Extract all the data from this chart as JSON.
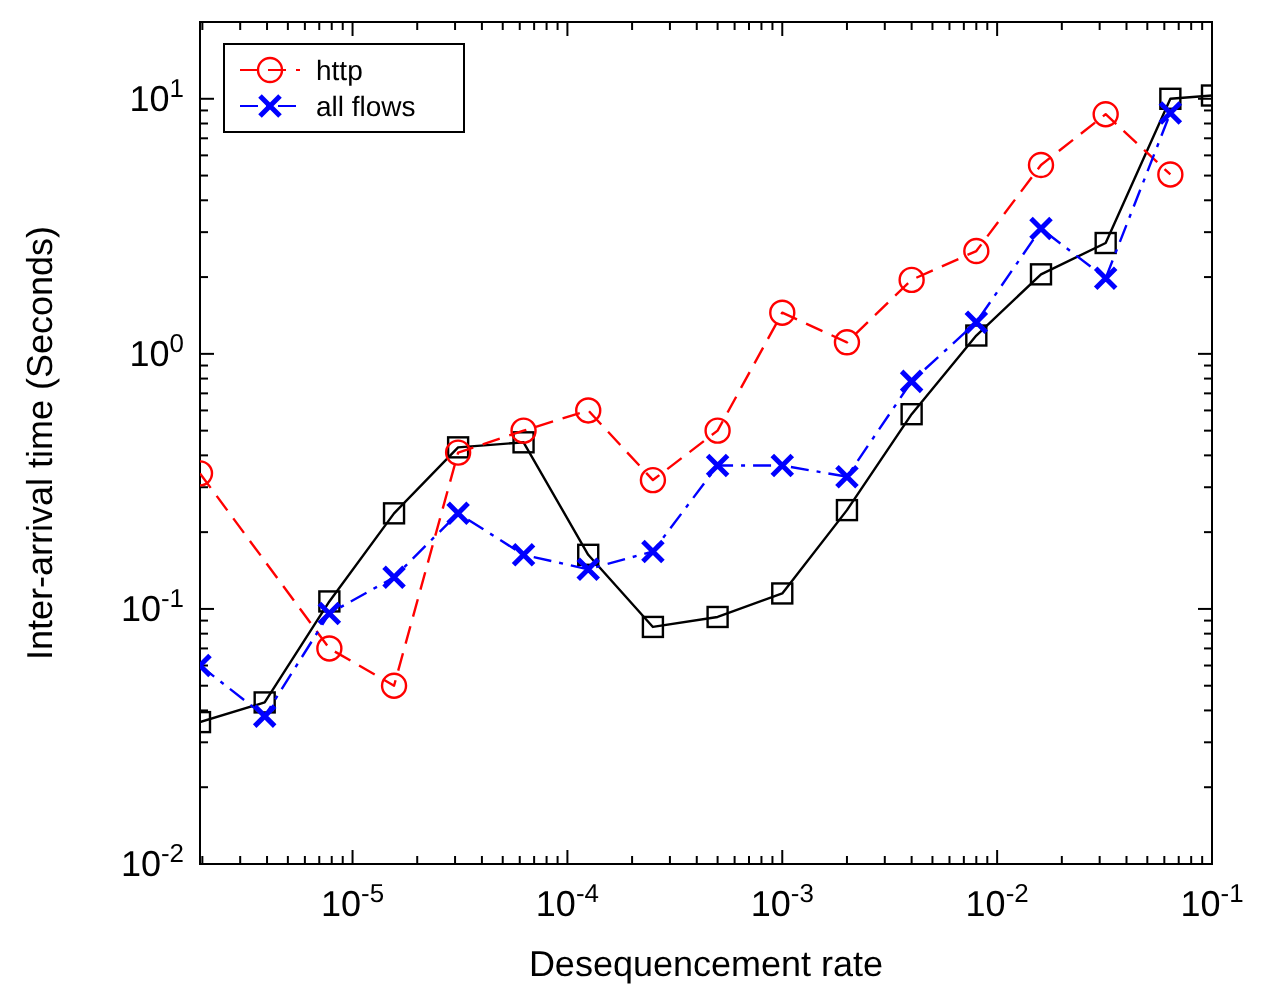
{
  "chart_data": {
    "type": "line",
    "xlabel": "Desequencement rate",
    "ylabel": "Inter-arrival time (Seconds)",
    "log": "xy",
    "grid": false,
    "legend": "top left",
    "xlim": [
      1.95e-06,
      0.1
    ],
    "ylim": [
      0.01,
      20
    ],
    "xticks": [
      {
        "value": 2e-06,
        "label": null
      },
      {
        "value": 3e-06,
        "label": null
      },
      {
        "value": 4e-06,
        "label": null
      },
      {
        "value": 5e-06,
        "label": null
      },
      {
        "value": 6e-06,
        "label": null
      },
      {
        "value": 7e-06,
        "label": null
      },
      {
        "value": 8e-06,
        "label": null
      },
      {
        "value": 9e-06,
        "label": null
      },
      {
        "value": 1e-05,
        "label": "10$^{-5}$"
      },
      {
        "value": 2e-05,
        "label": null
      },
      {
        "value": 3e-05,
        "label": null
      },
      {
        "value": 4e-05,
        "label": null
      },
      {
        "value": 5e-05,
        "label": null
      },
      {
        "value": 6e-05,
        "label": null
      },
      {
        "value": 7e-05,
        "label": null
      },
      {
        "value": 8e-05,
        "label": null
      },
      {
        "value": 9e-05,
        "label": null
      },
      {
        "value": 0.0001,
        "label": "10$^{-4}$"
      },
      {
        "value": 0.0002,
        "label": null
      },
      {
        "value": 0.0003,
        "label": null
      },
      {
        "value": 0.0004,
        "label": null
      },
      {
        "value": 0.0005,
        "label": null
      },
      {
        "value": 0.0006,
        "label": null
      },
      {
        "value": 0.0007,
        "label": null
      },
      {
        "value": 0.0008,
        "label": null
      },
      {
        "value": 0.0009,
        "label": null
      },
      {
        "value": 0.001,
        "label": "10$^{-3}$"
      },
      {
        "value": 0.002,
        "label": null
      },
      {
        "value": 0.003,
        "label": null
      },
      {
        "value": 0.004,
        "label": null
      },
      {
        "value": 0.005,
        "label": null
      },
      {
        "value": 0.006,
        "label": null
      },
      {
        "value": 0.007,
        "label": null
      },
      {
        "value": 0.008,
        "label": null
      },
      {
        "value": 0.009,
        "label": null
      },
      {
        "value": 0.01,
        "label": "10$^{-2}$"
      },
      {
        "value": 0.02,
        "label": null
      },
      {
        "value": 0.03,
        "label": null
      },
      {
        "value": 0.04,
        "label": null
      },
      {
        "value": 0.05,
        "label": null
      },
      {
        "value": 0.06,
        "label": null
      },
      {
        "value": 0.07,
        "label": null
      },
      {
        "value": 0.08,
        "label": null
      },
      {
        "value": 0.09,
        "label": null
      },
      {
        "value": 0.1,
        "label": "10$^{-1}$"
      }
    ],
    "yticks": [
      {
        "value": 0.01,
        "label": "10$^{-2}$"
      },
      {
        "value": 0.02,
        "label": null
      },
      {
        "value": 0.03,
        "label": null
      },
      {
        "value": 0.04,
        "label": null
      },
      {
        "value": 0.05,
        "label": null
      },
      {
        "value": 0.06,
        "label": null
      },
      {
        "value": 0.07,
        "label": null
      },
      {
        "value": 0.08,
        "label": null
      },
      {
        "value": 0.09,
        "label": null
      },
      {
        "value": 0.1,
        "label": "10$^{-1}$"
      },
      {
        "value": 0.2,
        "label": null
      },
      {
        "value": 0.3,
        "label": null
      },
      {
        "value": 0.4,
        "label": null
      },
      {
        "value": 0.5,
        "label": null
      },
      {
        "value": 0.6,
        "label": null
      },
      {
        "value": 0.7,
        "label": null
      },
      {
        "value": 0.8,
        "label": null
      },
      {
        "value": 0.9,
        "label": null
      },
      {
        "value": 1,
        "label": "10$^{0}$"
      },
      {
        "value": 2,
        "label": null
      },
      {
        "value": 3,
        "label": null
      },
      {
        "value": 4,
        "label": null
      },
      {
        "value": 5,
        "label": null
      },
      {
        "value": 6,
        "label": null
      },
      {
        "value": 7,
        "label": null
      },
      {
        "value": 8,
        "label": null
      },
      {
        "value": 9,
        "label": null
      },
      {
        "value": 10,
        "label": "10$^{1}$"
      }
    ],
    "series": [
      {
        "color": "#000000",
        "marker": "square",
        "line_style": "solid",
        "x": [
          1.95e-06,
          3.9e-06,
          7.8e-06,
          1.56e-05,
          3.1e-05,
          6.25e-05,
          0.000125,
          0.00025,
          0.0005,
          0.001,
          0.002,
          0.004,
          0.008,
          0.016,
          0.032,
          0.064,
          0.1
        ],
        "values": [
          0.036,
          0.043,
          0.107,
          0.237,
          0.43,
          0.45,
          0.163,
          0.085,
          0.093,
          0.115,
          0.244,
          0.58,
          1.18,
          2.05,
          2.72,
          10.0,
          10.3
        ]
      },
      {
        "name": "http",
        "color": "#ff0000",
        "marker": "circle",
        "line_style": "dashed",
        "x": [
          1.95e-06,
          7.8e-06,
          1.56e-05,
          3.1e-05,
          6.25e-05,
          0.000125,
          0.00025,
          0.0005,
          0.001,
          0.002,
          0.004,
          0.008,
          0.016,
          0.032,
          0.064
        ],
        "values": [
          0.34,
          0.07,
          0.05,
          0.41,
          0.5,
          0.6,
          0.32,
          0.5,
          1.45,
          1.11,
          1.95,
          2.53,
          5.5,
          8.7,
          5.05
        ]
      },
      {
        "name": "all flows",
        "color": "#0000ff",
        "marker": "cross",
        "line_style": "dashdot",
        "x": [
          1.95e-06,
          3.9e-06,
          7.8e-06,
          1.56e-05,
          3.1e-05,
          6.25e-05,
          0.000125,
          0.00025,
          0.0005,
          0.001,
          0.002,
          0.004,
          0.008,
          0.016,
          0.032,
          0.064
        ],
        "values": [
          0.06,
          0.038,
          0.096,
          0.133,
          0.237,
          0.163,
          0.143,
          0.168,
          0.365,
          0.365,
          0.33,
          0.78,
          1.33,
          3.1,
          1.98,
          8.8
        ]
      }
    ]
  }
}
